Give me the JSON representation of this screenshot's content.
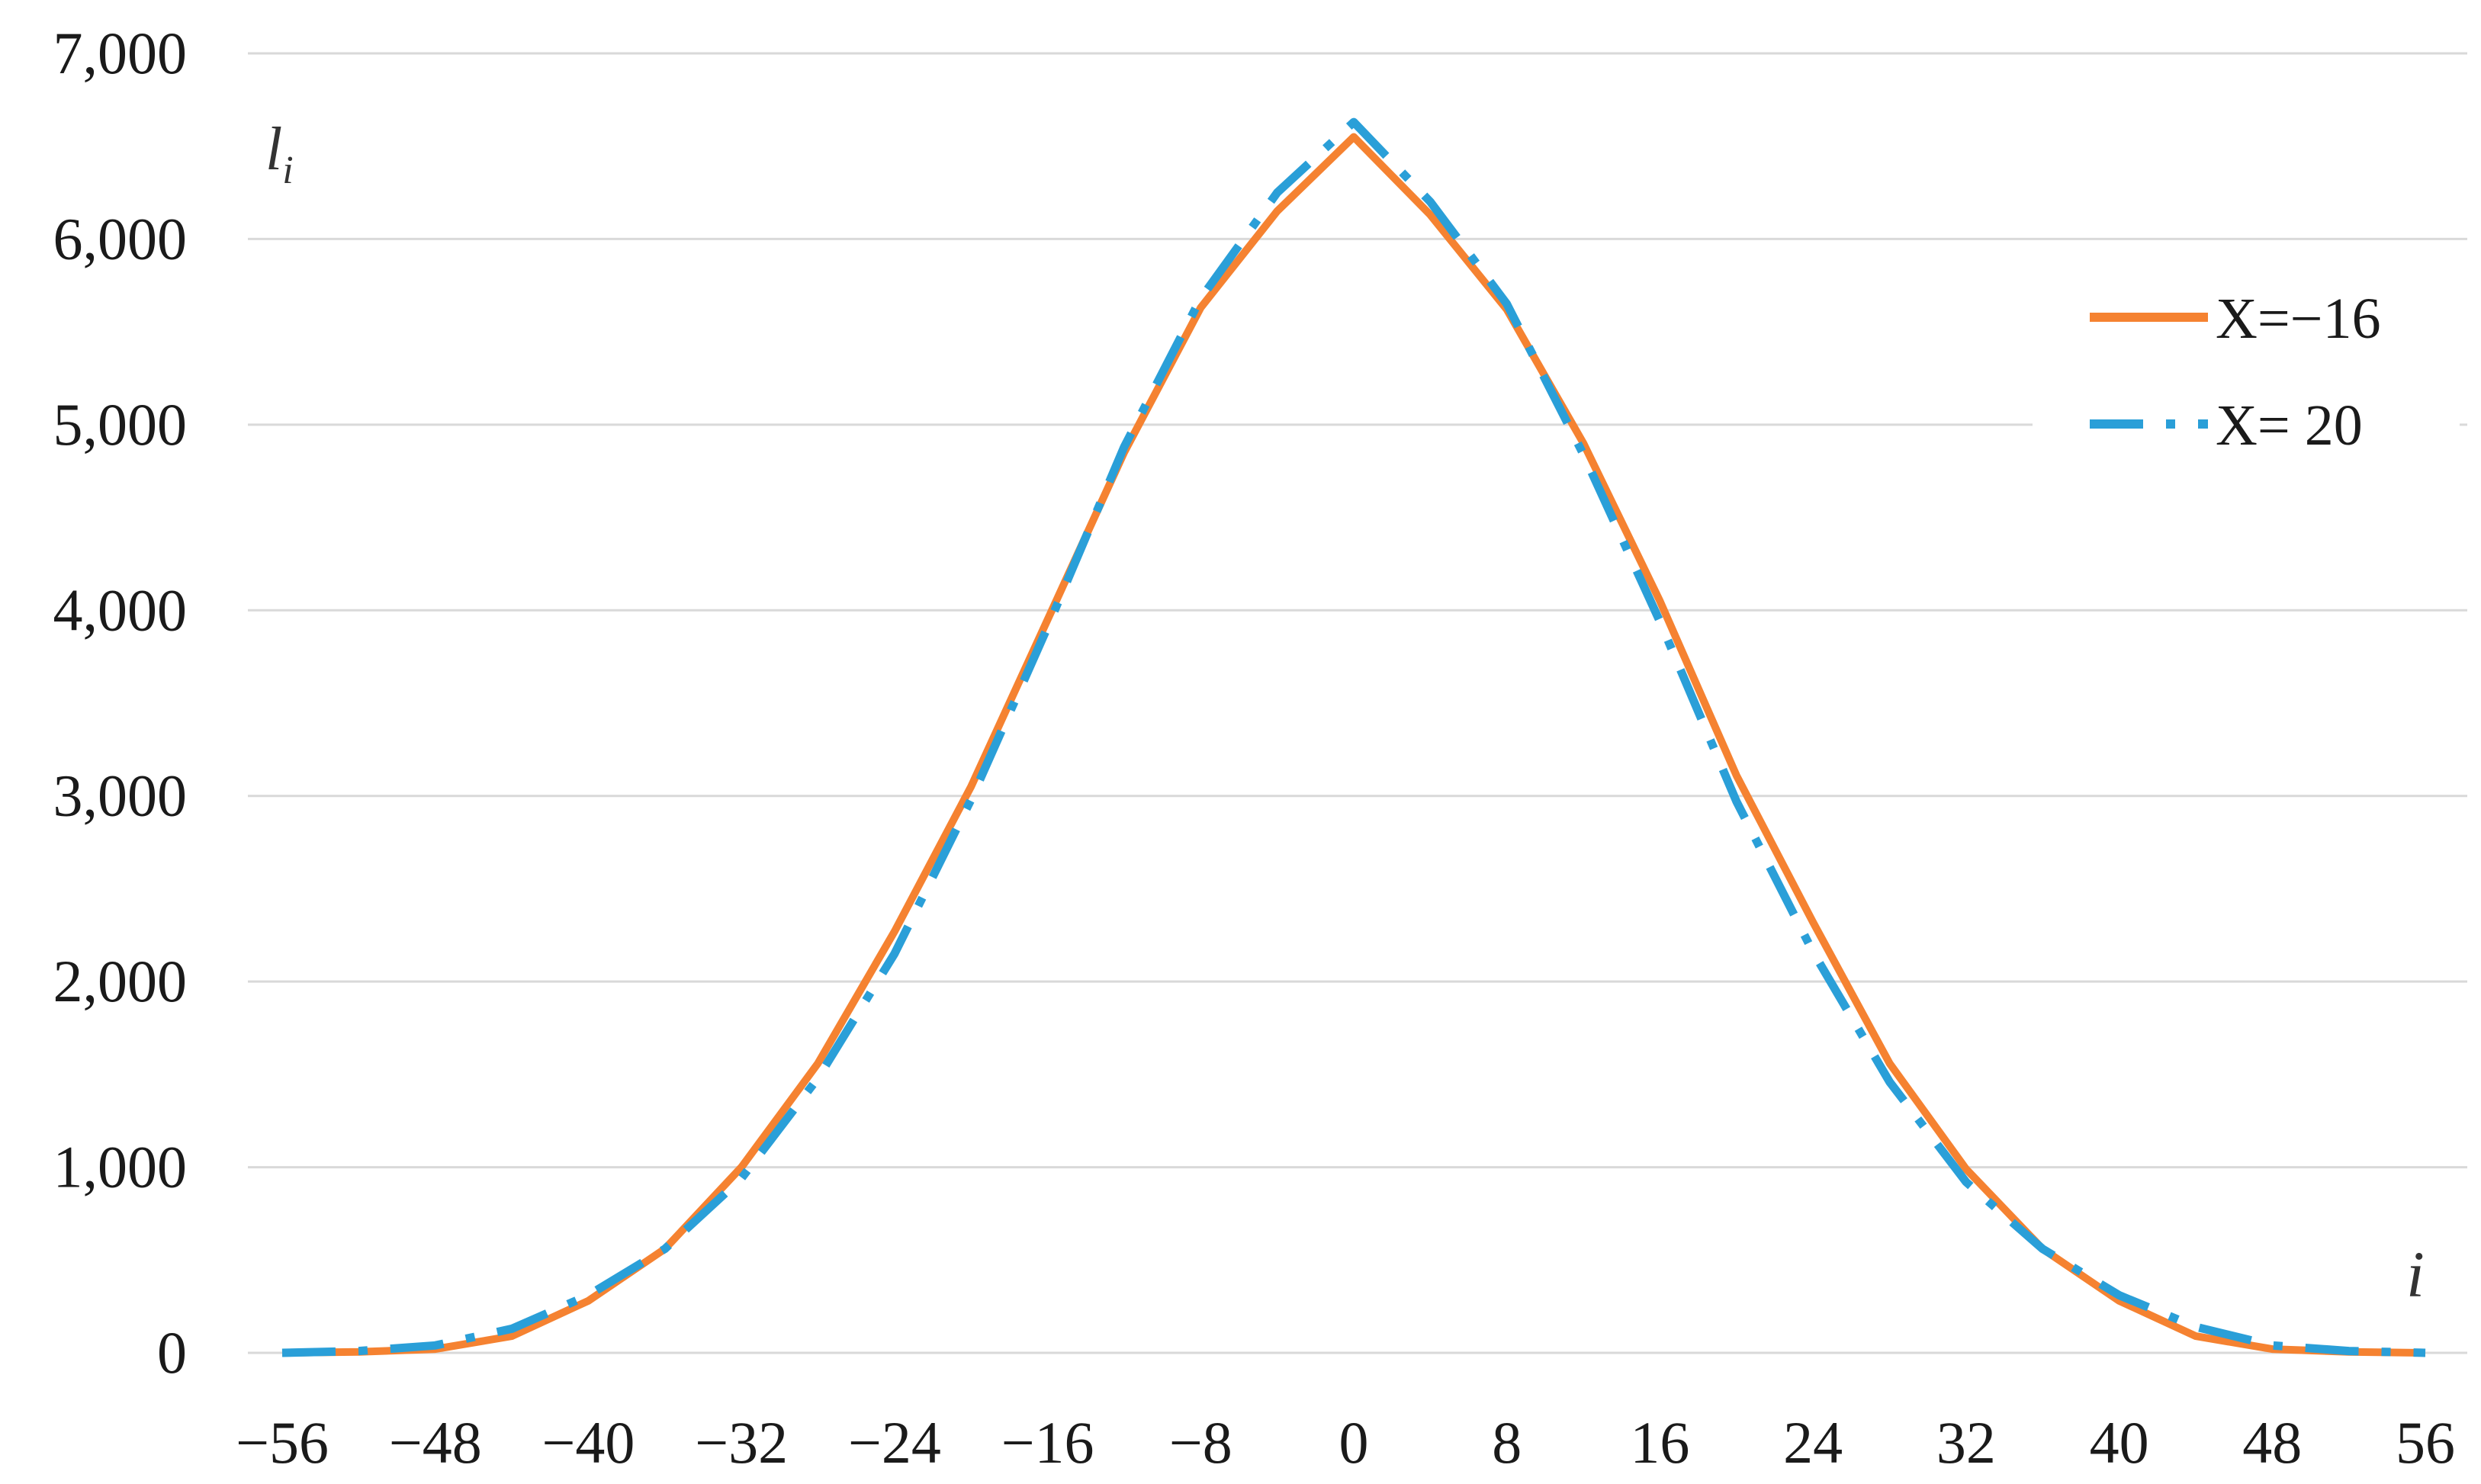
{
  "chart_data": {
    "type": "line",
    "title": "",
    "xlabel": "i",
    "ylabel": "l",
    "ylabel_subscript": "i",
    "xlim": [
      -56,
      56
    ],
    "ylim": [
      0,
      7000
    ],
    "grid": "horizontal",
    "legend_position": "right",
    "x_ticks": [
      {
        "value": -56,
        "label": "−56"
      },
      {
        "value": -48,
        "label": "−48"
      },
      {
        "value": -40,
        "label": "−40"
      },
      {
        "value": -32,
        "label": "−32"
      },
      {
        "value": -24,
        "label": "−24"
      },
      {
        "value": -16,
        "label": "−16"
      },
      {
        "value": -8,
        "label": "−8"
      },
      {
        "value": 0,
        "label": "0"
      },
      {
        "value": 8,
        "label": "8"
      },
      {
        "value": 16,
        "label": "16"
      },
      {
        "value": 24,
        "label": "24"
      },
      {
        "value": 32,
        "label": "32"
      },
      {
        "value": 40,
        "label": "40"
      },
      {
        "value": 48,
        "label": "48"
      },
      {
        "value": 56,
        "label": "56"
      }
    ],
    "y_ticks": [
      {
        "value": 0,
        "label": "0"
      },
      {
        "value": 1000,
        "label": "1,000"
      },
      {
        "value": 2000,
        "label": "2,000"
      },
      {
        "value": 3000,
        "label": "3,000"
      },
      {
        "value": 4000,
        "label": "4,000"
      },
      {
        "value": 5000,
        "label": "5,000"
      },
      {
        "value": 6000,
        "label": "6,000"
      },
      {
        "value": 7000,
        "label": "7,000"
      }
    ],
    "x": [
      -56,
      -52,
      -48,
      -44,
      -40,
      -36,
      -32,
      -28,
      -24,
      -20,
      -16,
      -12,
      -8,
      -4,
      0,
      4,
      8,
      12,
      16,
      20,
      24,
      28,
      32,
      36,
      40,
      44,
      48,
      52,
      56
    ],
    "series": [
      {
        "name": "X=−16",
        "color": "#f58231",
        "style": "solid",
        "values": [
          0,
          5,
          20,
          90,
          280,
          560,
          1000,
          1560,
          2270,
          3050,
          3950,
          4850,
          5630,
          6150,
          6550,
          6130,
          5620,
          4900,
          4050,
          3110,
          2320,
          1560,
          990,
          560,
          280,
          90,
          20,
          5,
          0
        ]
      },
      {
        "name": "X= 20",
        "color": "#2a9fd8",
        "style": "dashed",
        "values": [
          0,
          10,
          40,
          130,
          310,
          560,
          940,
          1480,
          2150,
          2980,
          3910,
          4880,
          5680,
          6250,
          6630,
          6200,
          5650,
          4840,
          3940,
          2970,
          2160,
          1460,
          920,
          560,
          310,
          140,
          40,
          10,
          0
        ]
      }
    ]
  }
}
